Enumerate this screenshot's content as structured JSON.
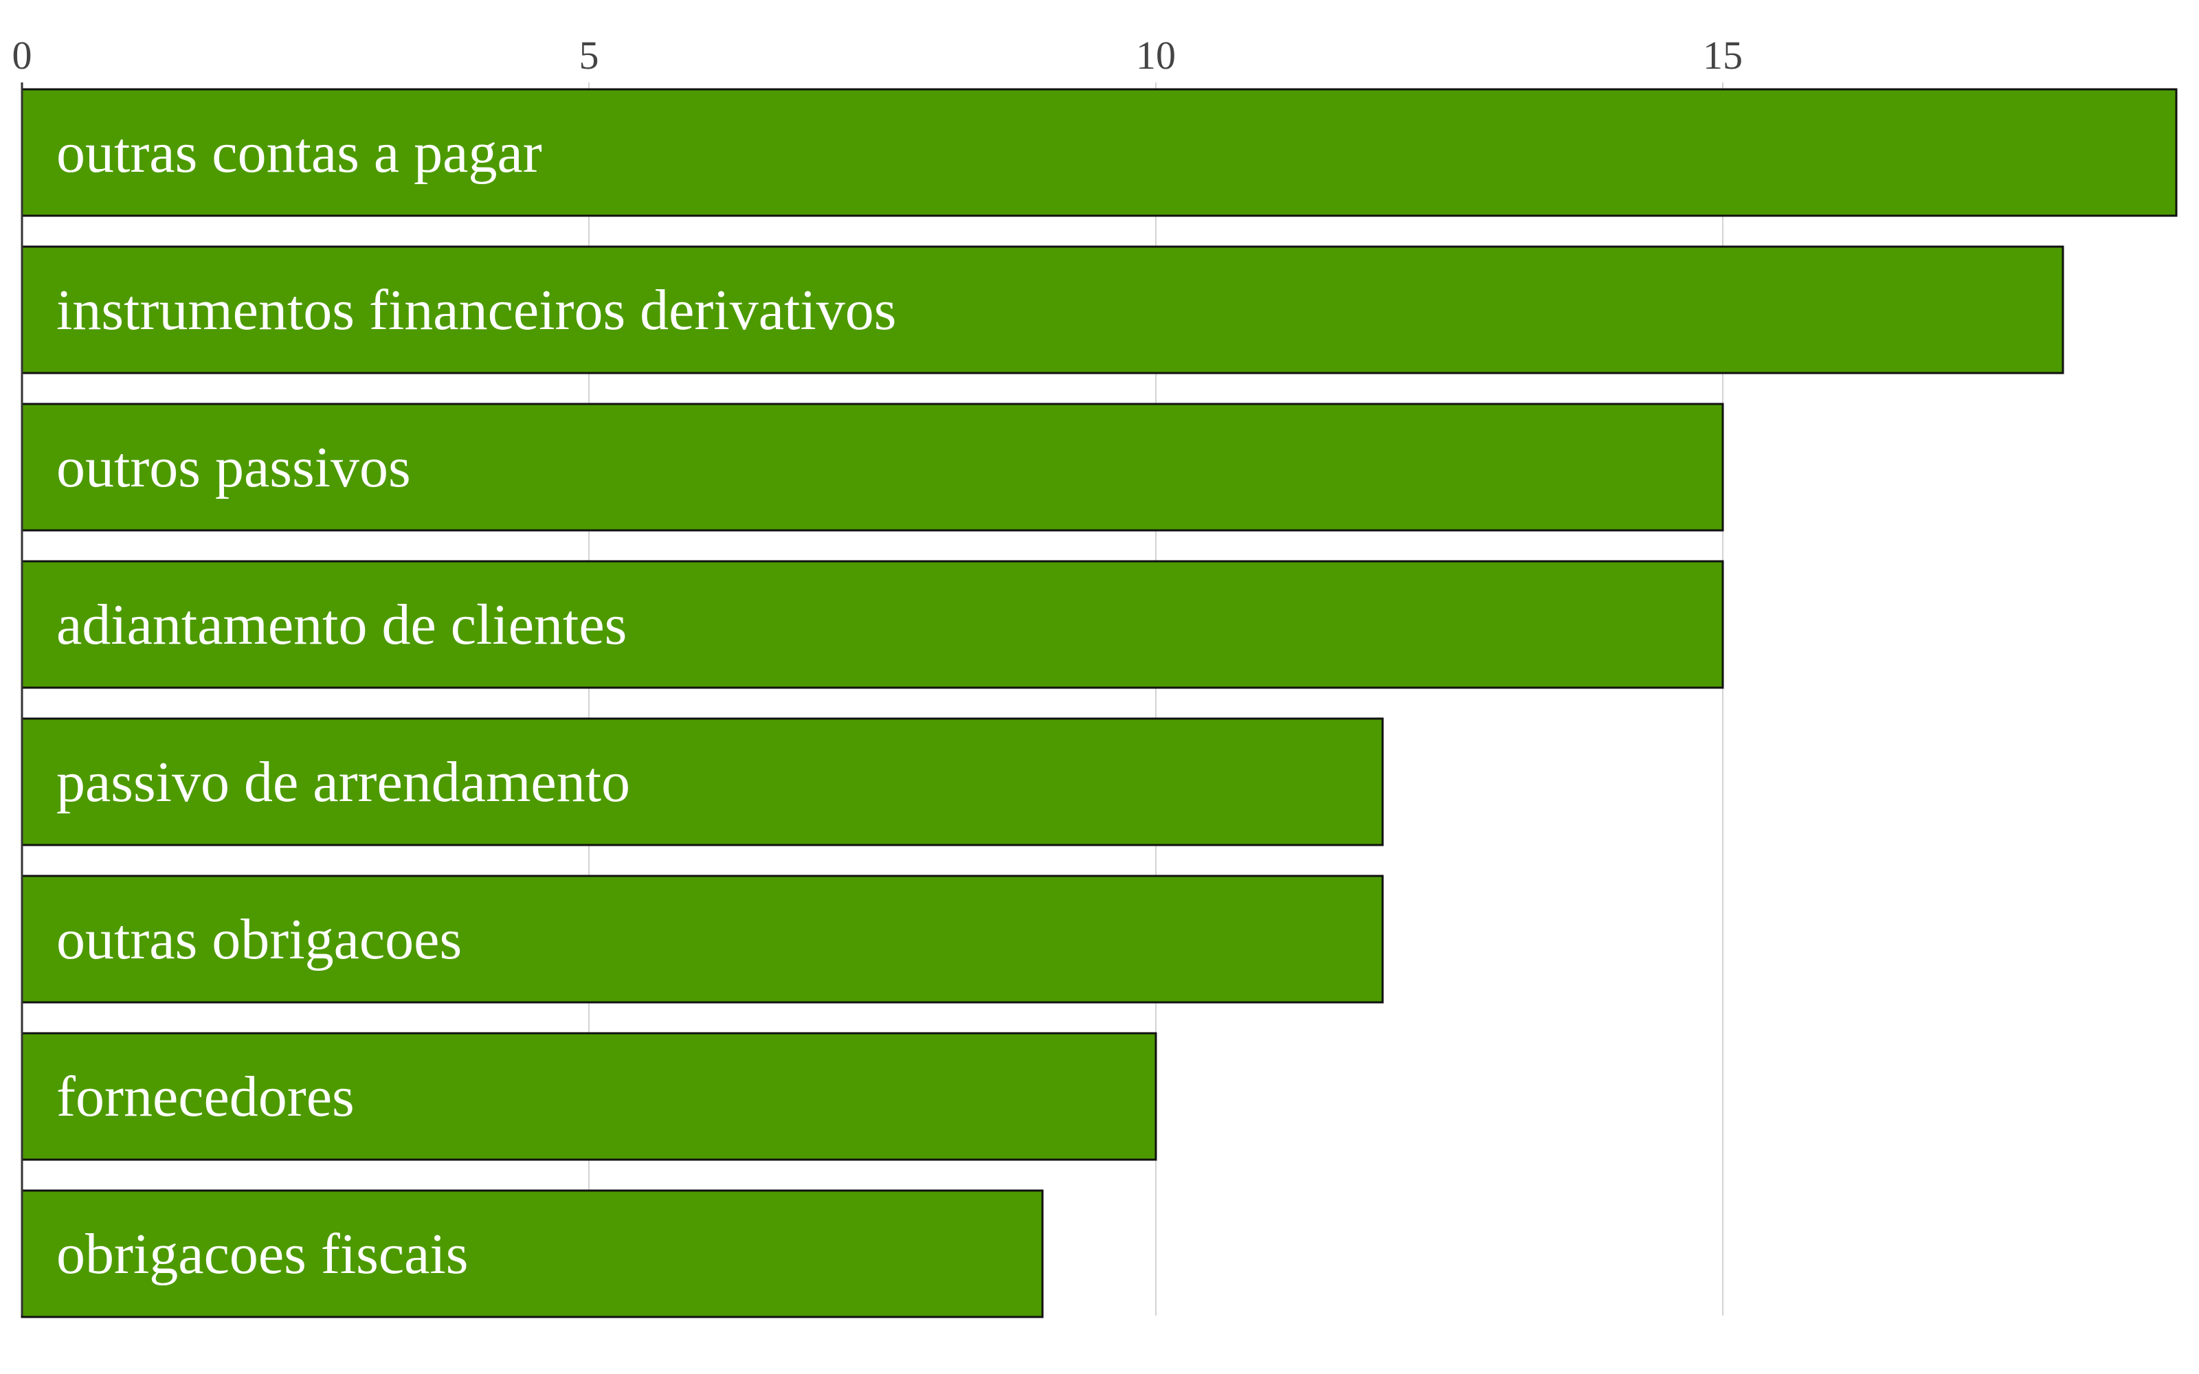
{
  "chart_data": {
    "type": "bar",
    "orientation": "horizontal",
    "categories": [
      "outras contas a pagar",
      "instrumentos financeiros derivativos",
      "outros passivos",
      "adiantamento de clientes",
      "passivo de arrendamento",
      "outras obrigacoes",
      "fornecedores",
      "obrigacoes fiscais"
    ],
    "values": [
      19,
      18,
      15,
      15,
      12,
      12,
      10,
      9
    ],
    "xlim": [
      0,
      19
    ],
    "xticks": [
      0,
      5,
      10,
      15
    ],
    "xtick_labels": [
      "0",
      "5",
      "10",
      "15"
    ],
    "x_axis_position": "top",
    "grid": "vertical",
    "labels_inside_bars": true,
    "bar_color": "#4d9a00",
    "bar_edge_color": "#111111",
    "label_color": "#ffffff",
    "grid_color": "#d3d3d3",
    "tick_label_color": "#444444"
  }
}
